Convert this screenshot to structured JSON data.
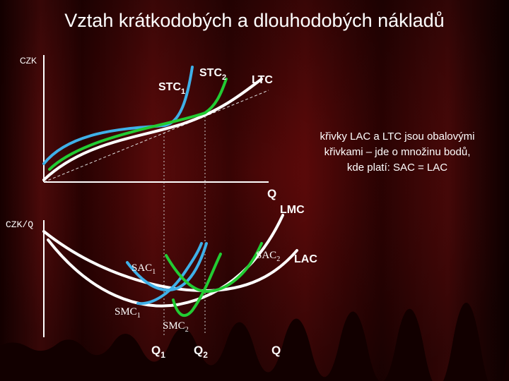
{
  "title": "Vztah krátkodobých a dlouhodobých nákladů",
  "top_chart": {
    "y_axis_label": "CZK",
    "x_axis_label": "Q",
    "curves": {
      "stc1": {
        "text": "STC",
        "sub": "1"
      },
      "stc2": {
        "text": "STC",
        "sub": "2"
      },
      "ltc": "LTC"
    },
    "note": [
      "křivky LAC a LTC jsou obalovými",
      "křivkami – jde o množinu bodů,",
      "kde platí: SAC = LAC"
    ]
  },
  "bottom_chart": {
    "y_axis_label": "CZK/Q",
    "curves": {
      "lmc": "LMC",
      "lac": "LAC",
      "sac1": {
        "text": "SAC",
        "sub": "1"
      },
      "sac2": {
        "text": "SAC",
        "sub": "2"
      },
      "smc1": {
        "text": "SMC",
        "sub": "1"
      },
      "smc2": {
        "text": "SMC",
        "sub": "2"
      }
    },
    "x_labels": {
      "q1": {
        "text": "Q",
        "sub": "1"
      },
      "q2": {
        "text": "Q",
        "sub": "2"
      },
      "q": "Q"
    }
  }
}
